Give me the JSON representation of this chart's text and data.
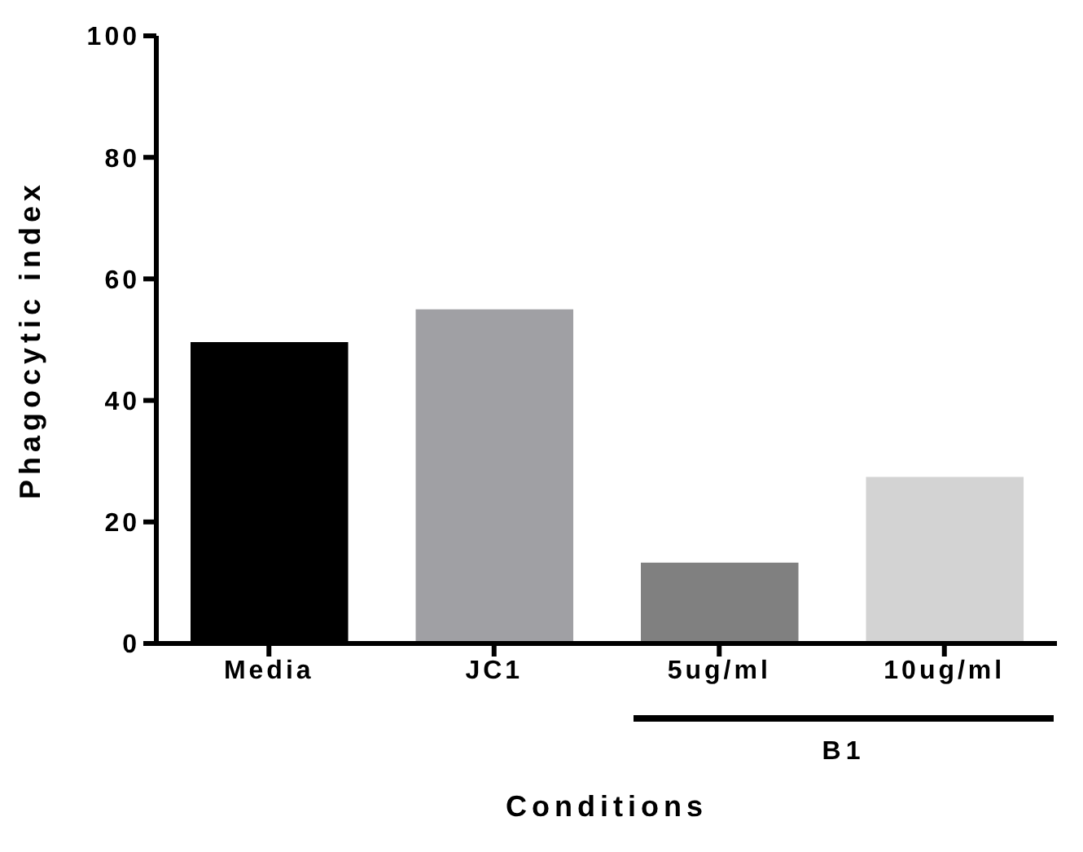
{
  "chart_data": {
    "type": "bar",
    "xlabel": "Conditions",
    "ylabel": "Phagocytic index",
    "categories": [
      "Media",
      "JC1",
      "5ug/ml",
      "10ug/ml"
    ],
    "values": [
      49.6,
      55.0,
      13.3,
      27.4
    ],
    "colors": [
      "#000000",
      "#a0a0a4",
      "#808080",
      "#d3d3d3"
    ],
    "ylim": [
      0,
      100
    ],
    "yticks": [
      0,
      20,
      40,
      60,
      80,
      100
    ],
    "annotations": [
      "B1"
    ]
  }
}
